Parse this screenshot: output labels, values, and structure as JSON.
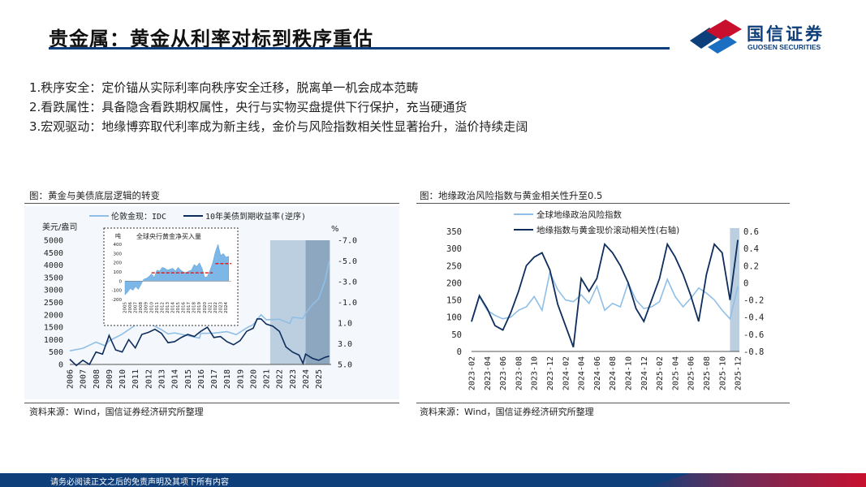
{
  "title": "贵金属：黄金从利率对标到秩序重估",
  "logo": {
    "cn": "国信证券",
    "en": "GUOSEN SECURITIES"
  },
  "bullets": [
    "1.秩序安全：定价锚从实际利率向秩序安全迁移，脱离单一机会成本范畴",
    "2.看跌属性：具备隐含看跌期权属性，央行与实物买盘提供下行保护，充当硬通货",
    "3.宏观驱动：地缘博弈取代利率成为新主线，金价与风险指数相关性显著抬升，溢价持续走阔"
  ],
  "footer_text": "请务必阅读正文之后的免责声明及其项下所有内容",
  "colors": {
    "brand": "#0f3f7a",
    "light_series": "#8fbfe6",
    "dark_series": "#0e2d5c",
    "shade": "#bccfe0",
    "shade_dark": "#8ea7c0",
    "red_dash": "#e0201c"
  },
  "chart_data": [
    {
      "type": "line",
      "caption": "图：黄金与美债底层逻辑的转变",
      "source": "资料来源：Wind，国信证券经济研究所整理",
      "series": [
        {
          "name": "伦敦金现：IDC",
          "axis": "left",
          "color": "#8fbfe6",
          "x": [
            2006,
            2007,
            2008,
            2008.7,
            2009,
            2010,
            2011,
            2011.7,
            2012,
            2013,
            2013.5,
            2014,
            2015,
            2015.9,
            2016,
            2017,
            2018,
            2018.7,
            2019,
            2019.6,
            2020,
            2020.6,
            2021,
            2022,
            2022.8,
            2023,
            2023.8,
            2024,
            2024.5,
            2025,
            2025.5,
            2025.8
          ],
          "values": [
            550,
            650,
            900,
            750,
            950,
            1220,
            1580,
            1850,
            1670,
            1400,
            1230,
            1270,
            1160,
            1060,
            1250,
            1260,
            1320,
            1200,
            1300,
            1500,
            1600,
            2000,
            1800,
            1820,
            1650,
            1900,
            1850,
            2050,
            2400,
            2650,
            3400,
            4150
          ]
        },
        {
          "name": "10年美债到期收益率(逆序)",
          "axis": "right",
          "color": "#0e2d5c",
          "x": [
            2006,
            2006.5,
            2007,
            2007.5,
            2008,
            2008.5,
            2009,
            2009.5,
            2010,
            2010.5,
            2011,
            2011.5,
            2012,
            2012.5,
            2013,
            2013.5,
            2014,
            2014.5,
            2015,
            2015.5,
            2016,
            2016.5,
            2017,
            2017.5,
            2018,
            2018.5,
            2019,
            2019.5,
            2020,
            2020.3,
            2020.6,
            2021,
            2021.5,
            2022,
            2022.5,
            2023,
            2023.5,
            2023.8,
            2024,
            2024.5,
            2025,
            2025.5,
            2025.8
          ],
          "values": [
            4.5,
            5.1,
            4.6,
            5.0,
            3.8,
            4.0,
            2.2,
            3.6,
            3.8,
            2.6,
            3.4,
            2.1,
            1.9,
            1.6,
            2.0,
            2.9,
            2.8,
            2.4,
            2.1,
            2.3,
            1.8,
            1.4,
            2.4,
            2.3,
            2.8,
            3.1,
            2.7,
            1.8,
            1.5,
            0.6,
            0.6,
            1.1,
            1.3,
            1.8,
            3.3,
            3.8,
            4.1,
            4.9,
            4.0,
            4.4,
            4.6,
            4.3,
            4.2
          ]
        }
      ],
      "yleft": {
        "label": "美元/盎司",
        "ticks": [
          "5000",
          "4500",
          "4000",
          "3500",
          "3000",
          "2500",
          "2000",
          "1500",
          "1000",
          "500",
          "0"
        ],
        "lim": [
          0,
          5000
        ]
      },
      "yright": {
        "label": "%",
        "ticks": [
          "-7.0",
          "-5.0",
          "-3.0",
          "-1.0",
          "1.0",
          "3.0",
          "5.0"
        ],
        "lim": [
          -7,
          5
        ],
        "inverted": true
      },
      "xticks": [
        "2006",
        "2007",
        "2008",
        "2009",
        "2010",
        "2011",
        "2012",
        "2013",
        "2014",
        "2015",
        "2016",
        "2017",
        "2018",
        "2019",
        "2020",
        "2021",
        "2022",
        "2023",
        "2024",
        "2025"
      ],
      "shaded_periods": [
        [
          2021.3,
          2025.85
        ]
      ],
      "inset": {
        "title": "全球央行黄金净买入量",
        "ylabel": "吨",
        "yticks": [
          "400",
          "300",
          "200",
          "100",
          "0",
          "-100",
          "-200"
        ],
        "ylim": [
          -200,
          400
        ],
        "xticks": [
          "2005",
          "2006",
          "2007",
          "2008",
          "2009",
          "2010",
          "2011",
          "2012",
          "2013",
          "2014",
          "2015",
          "2016",
          "2017",
          "2018",
          "2019",
          "2020",
          "2021",
          "2022",
          "2023",
          "2024"
        ],
        "x": [
          2005,
          2005.5,
          2006,
          2006.5,
          2007,
          2007.5,
          2008,
          2008.5,
          2009,
          2009.5,
          2010,
          2010.5,
          2011,
          2011.5,
          2012,
          2012.5,
          2013,
          2013.5,
          2014,
          2014.5,
          2015,
          2015.5,
          2016,
          2016.5,
          2017,
          2017.5,
          2018,
          2018.5,
          2019,
          2019.5,
          2020,
          2020.5,
          2021,
          2021.5,
          2022,
          2022.5,
          2023,
          2023.5,
          2024,
          2024.5
        ],
        "values": [
          -150,
          -120,
          -80,
          -100,
          -60,
          -90,
          -40,
          20,
          30,
          50,
          80,
          40,
          120,
          110,
          150,
          140,
          120,
          130,
          140,
          110,
          150,
          120,
          100,
          90,
          110,
          120,
          180,
          160,
          200,
          140,
          40,
          50,
          120,
          200,
          320,
          400,
          280,
          300,
          260,
          270
        ],
        "avg_levels": [
          {
            "from": 2010,
            "to": 2021.5,
            "value": 90
          },
          {
            "from": 2022,
            "to": 2025,
            "value": 190
          }
        ]
      }
    },
    {
      "type": "line",
      "caption": "图：地缘政治风险指数与黄金相关性升至0.5",
      "source": "资料来源：Wind，国信证券经济研究所整理",
      "series": [
        {
          "name": "全球地缘政治风险指数",
          "axis": "left",
          "color": "#8fbfe6",
          "x": [
            0,
            1,
            2,
            3,
            4,
            5,
            6,
            7,
            8,
            9,
            10,
            11,
            12,
            13,
            14,
            15,
            16,
            17,
            18,
            19,
            20,
            21,
            22,
            23,
            24,
            25,
            26,
            27,
            28,
            29,
            30,
            31,
            32,
            33,
            34
          ],
          "values": [
            85,
            160,
            120,
            105,
            95,
            100,
            120,
            130,
            160,
            120,
            230,
            180,
            150,
            145,
            165,
            140,
            190,
            120,
            140,
            130,
            200,
            150,
            125,
            130,
            145,
            210,
            160,
            130,
            155,
            185,
            170,
            150,
            120,
            95,
            190
          ]
        },
        {
          "name": "地缘指数与黄金现价滚动相关性(右轴)",
          "axis": "right",
          "color": "#0e2d5c",
          "x": [
            0,
            1,
            2,
            3,
            4,
            5,
            6,
            7,
            8,
            9,
            10,
            11,
            12,
            13,
            14,
            15,
            16,
            17,
            18,
            19,
            20,
            21,
            22,
            23,
            24,
            25,
            26,
            27,
            28,
            29,
            30,
            31,
            32,
            33,
            34
          ],
          "values": [
            -0.45,
            -0.15,
            -0.3,
            -0.5,
            -0.55,
            -0.35,
            -0.1,
            0.2,
            0.3,
            0.35,
            0.15,
            -0.25,
            -0.5,
            -0.75,
            0.05,
            -0.1,
            0.05,
            0.45,
            0.35,
            0.2,
            0.0,
            -0.3,
            -0.45,
            -0.2,
            0.05,
            0.45,
            0.3,
            0.1,
            -0.15,
            -0.45,
            0.1,
            0.45,
            0.35,
            -0.2,
            0.5
          ]
        }
      ],
      "yleft": {
        "ticks": [
          "350",
          "300",
          "250",
          "200",
          "150",
          "100",
          "50",
          "0"
        ],
        "lim": [
          0,
          350
        ]
      },
      "yright": {
        "ticks": [
          "0.6",
          "0.4",
          "0.2",
          "0",
          "-0.2",
          "-0.4",
          "-0.6",
          "-0.8"
        ],
        "lim": [
          -0.8,
          0.6
        ]
      },
      "xticks": [
        "2023-02",
        "2023-04",
        "2023-06",
        "2023-08",
        "2023-10",
        "2023-12",
        "2024-02",
        "2024-04",
        "2024-06",
        "2024-08",
        "2024-10",
        "2024-12",
        "2025-02",
        "2025-04",
        "2025-06",
        "2025-08",
        "2025-10",
        "2025-12"
      ],
      "shaded_periods": [
        [
          33,
          34.2
        ]
      ]
    }
  ]
}
